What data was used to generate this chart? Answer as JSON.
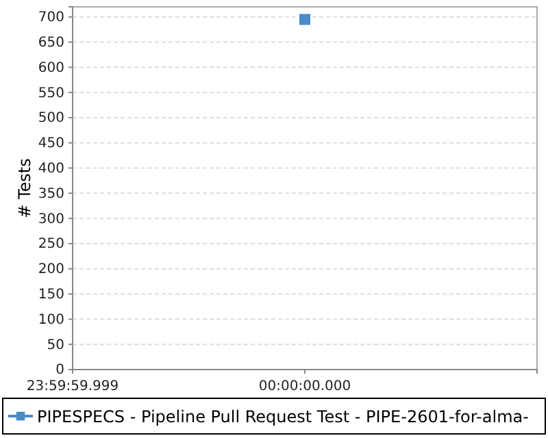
{
  "chart_data": {
    "type": "line",
    "ylabel": "# Tests",
    "categories": [
      "23:59:59.999",
      "00:00:00.000",
      null
    ],
    "series": [
      {
        "name": "PIPESPECS - Pipeline Pull Request Test - PIPE-2601-for-alma-",
        "color": "#4a8cc7",
        "values": [
          null,
          695,
          null
        ]
      }
    ],
    "ylim": [
      0,
      720
    ],
    "yticks": [
      0,
      50,
      100,
      150,
      200,
      250,
      300,
      350,
      400,
      450,
      500,
      550,
      600,
      650,
      700
    ],
    "grid": "y",
    "marker": "square",
    "legend": "bottom"
  }
}
